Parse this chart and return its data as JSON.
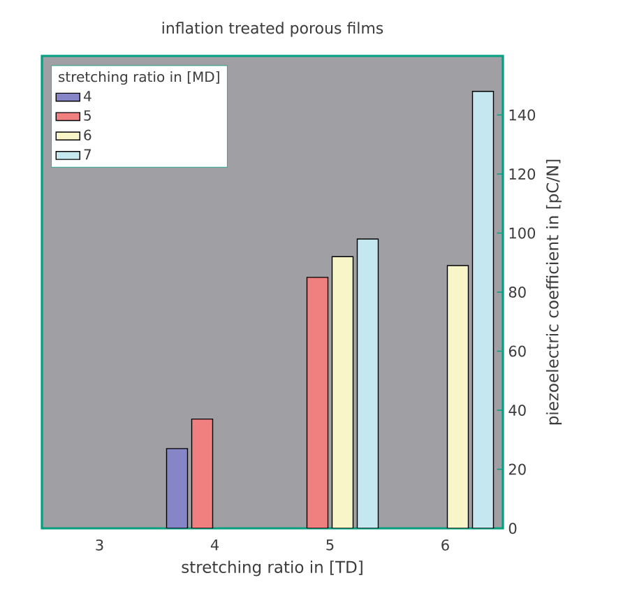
{
  "chart_data": {
    "type": "bar",
    "title": "inflation treated porous films",
    "xlabel": "stretching ratio in [TD]",
    "ylabel": "piezoelectric coefficient in [pC/N]",
    "legend_title": "stretching ratio in [MD]",
    "legend": "top left",
    "categories": [
      "3",
      "4",
      "5",
      "6"
    ],
    "series": [
      {
        "name": "4",
        "color": "#8585c8",
        "values": [
          null,
          27,
          null,
          null
        ]
      },
      {
        "name": "5",
        "color": "#f07f80",
        "values": [
          null,
          37,
          85,
          null
        ]
      },
      {
        "name": "6",
        "color": "#f8f6c8",
        "values": [
          null,
          null,
          92,
          89
        ]
      },
      {
        "name": "7",
        "color": "#c5e8f0",
        "values": [
          null,
          null,
          98,
          148
        ]
      }
    ],
    "ylim": [
      0,
      160
    ],
    "yticks": [
      0,
      20,
      40,
      60,
      80,
      100,
      120,
      140
    ]
  }
}
